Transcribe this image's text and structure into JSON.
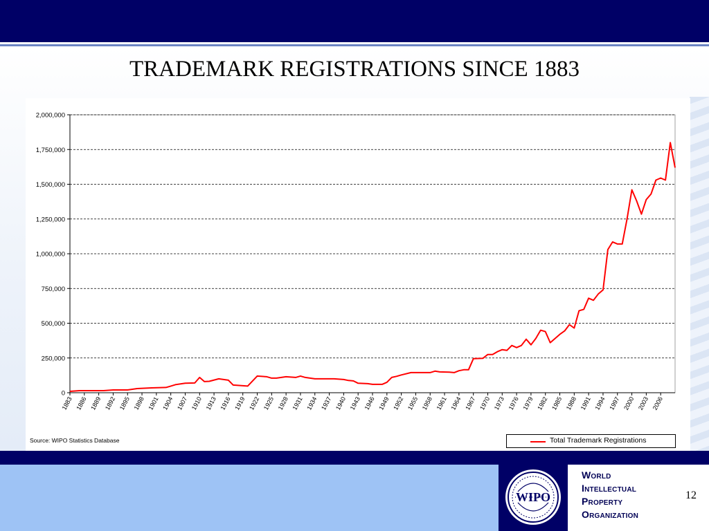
{
  "slide": {
    "title": "TRADEMARK REGISTRATIONS SINCE 1883",
    "page_number": "12"
  },
  "footer": {
    "organization_lines": [
      "World",
      "Intellectual",
      "Property",
      "Organization"
    ],
    "logo_text": "WIPO"
  },
  "colors": {
    "header": "#000066",
    "series": "#ff0000",
    "footer_light": "#9ec3f5"
  },
  "chart_data": {
    "type": "line",
    "title": "",
    "xlabel": "",
    "ylabel": "",
    "ylim": [
      0,
      2000000
    ],
    "yticks": [
      0,
      250000,
      500000,
      750000,
      1000000,
      1250000,
      1500000,
      1750000,
      2000000
    ],
    "ytick_labels": [
      "0",
      "250,000",
      "500,000",
      "750,000",
      "1,000,000",
      "1,250,000",
      "1,500,000",
      "1,750,000",
      "2,000,000"
    ],
    "xlim": [
      1883,
      2006
    ],
    "xtick_labels": [
      "1883",
      "1886",
      "1889",
      "1892",
      "1895",
      "1898",
      "1901",
      "1904",
      "1907",
      "1910",
      "1913",
      "1916",
      "1919",
      "1922",
      "1925",
      "1928",
      "1931",
      "1934",
      "1937",
      "1940",
      "1943",
      "1946",
      "1949",
      "1952",
      "1955",
      "1958",
      "1961",
      "1964",
      "1967",
      "1970",
      "1973",
      "1976",
      "1979",
      "1982",
      "1985",
      "1988",
      "1991",
      "1994",
      "1997",
      "2000",
      "2003",
      "2006"
    ],
    "grid": "horizontal dashed",
    "legend_position": "bottom-right",
    "source": "Source: WIPO Statistics Database",
    "series": [
      {
        "name": "Total Trademark Registrations",
        "color": "#ff0000",
        "points": [
          [
            1883,
            10000
          ],
          [
            1885,
            15000
          ],
          [
            1890,
            15000
          ],
          [
            1892,
            20000
          ],
          [
            1895,
            20000
          ],
          [
            1897,
            30000
          ],
          [
            1900,
            35000
          ],
          [
            1903,
            38000
          ],
          [
            1904,
            48000
          ],
          [
            1905,
            58000
          ],
          [
            1907,
            68000
          ],
          [
            1909,
            70000
          ],
          [
            1910,
            110000
          ],
          [
            1911,
            80000
          ],
          [
            1912,
            82000
          ],
          [
            1914,
            100000
          ],
          [
            1916,
            90000
          ],
          [
            1917,
            55000
          ],
          [
            1919,
            50000
          ],
          [
            1920,
            48000
          ],
          [
            1922,
            120000
          ],
          [
            1924,
            115000
          ],
          [
            1925,
            105000
          ],
          [
            1926,
            105000
          ],
          [
            1928,
            115000
          ],
          [
            1930,
            110000
          ],
          [
            1931,
            120000
          ],
          [
            1932,
            110000
          ],
          [
            1934,
            100000
          ],
          [
            1936,
            100000
          ],
          [
            1938,
            100000
          ],
          [
            1940,
            95000
          ],
          [
            1941,
            88000
          ],
          [
            1942,
            85000
          ],
          [
            1943,
            68000
          ],
          [
            1945,
            65000
          ],
          [
            1946,
            60000
          ],
          [
            1948,
            60000
          ],
          [
            1949,
            75000
          ],
          [
            1950,
            110000
          ],
          [
            1951,
            118000
          ],
          [
            1952,
            128000
          ],
          [
            1954,
            145000
          ],
          [
            1956,
            145000
          ],
          [
            1958,
            145000
          ],
          [
            1959,
            155000
          ],
          [
            1960,
            150000
          ],
          [
            1962,
            148000
          ],
          [
            1963,
            145000
          ],
          [
            1964,
            158000
          ],
          [
            1965,
            165000
          ],
          [
            1966,
            165000
          ],
          [
            1967,
            245000
          ],
          [
            1969,
            248000
          ],
          [
            1970,
            275000
          ],
          [
            1971,
            275000
          ],
          [
            1972,
            295000
          ],
          [
            1973,
            310000
          ],
          [
            1974,
            305000
          ],
          [
            1975,
            340000
          ],
          [
            1976,
            325000
          ],
          [
            1977,
            340000
          ],
          [
            1978,
            385000
          ],
          [
            1979,
            345000
          ],
          [
            1980,
            390000
          ],
          [
            1981,
            450000
          ],
          [
            1982,
            440000
          ],
          [
            1983,
            360000
          ],
          [
            1984,
            390000
          ],
          [
            1985,
            420000
          ],
          [
            1986,
            445000
          ],
          [
            1987,
            490000
          ],
          [
            1988,
            465000
          ],
          [
            1989,
            590000
          ],
          [
            1990,
            600000
          ],
          [
            1991,
            680000
          ],
          [
            1992,
            665000
          ],
          [
            1993,
            710000
          ],
          [
            1994,
            740000
          ],
          [
            1995,
            1030000
          ],
          [
            1996,
            1085000
          ],
          [
            1997,
            1070000
          ],
          [
            1998,
            1070000
          ],
          [
            1999,
            1250000
          ],
          [
            2000,
            1460000
          ],
          [
            2001,
            1380000
          ],
          [
            2002,
            1285000
          ],
          [
            2003,
            1390000
          ],
          [
            2004,
            1430000
          ],
          [
            2005,
            1530000
          ],
          [
            2006,
            1545000
          ],
          [
            2007,
            1530000
          ],
          [
            2008,
            1800000
          ],
          [
            2009,
            1620000
          ]
        ]
      }
    ]
  }
}
